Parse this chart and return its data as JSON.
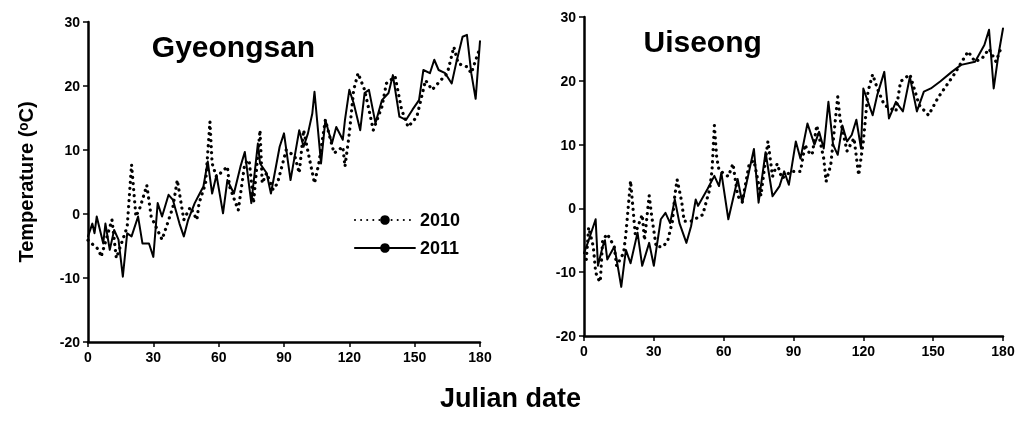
{
  "chart_data": [
    {
      "type": "line",
      "title": "Gyeongsan",
      "xlabel": "Julian date",
      "ylabel": "Temperature (ᵒC)",
      "xlim": [
        0,
        180
      ],
      "xticks": [
        0,
        30,
        60,
        90,
        120,
        150,
        180
      ],
      "ylim": [
        -20,
        30
      ],
      "yticks": [
        -20,
        -10,
        0,
        10,
        20,
        30
      ],
      "legend": "bottom right",
      "series": [
        {
          "name": "2010",
          "color": "#000000",
          "line_style": "dotted",
          "x": [
            0,
            5,
            6,
            11,
            13,
            18,
            20,
            22,
            24,
            27,
            29,
            34,
            36,
            39,
            41,
            44,
            47,
            50,
            51,
            54,
            56,
            57,
            59,
            64,
            65,
            69,
            72,
            74,
            76,
            79,
            80,
            82,
            85,
            87,
            91,
            95,
            97,
            99,
            104,
            106,
            109,
            111,
            113,
            117,
            118,
            120,
            122,
            124,
            127,
            129,
            131,
            135,
            137,
            141,
            144,
            147,
            151,
            155,
            158,
            162,
            165,
            168,
            170,
            174,
            176,
            178,
            180
          ],
          "values": [
            -4.1,
            -5.6,
            -6.7,
            -0.9,
            -6.9,
            -2,
            7.7,
            -0.4,
            1.1,
            4.5,
            -0.4,
            -4,
            -2,
            1.1,
            5.3,
            -0.9,
            1.1,
            -0.9,
            1.7,
            4.8,
            14.4,
            7.9,
            5.8,
            7.4,
            4.3,
            0.6,
            7.9,
            8.4,
            1.7,
            13.1,
            4.8,
            6.4,
            3.8,
            4.8,
            10,
            9,
            6.4,
            13.1,
            4.8,
            7.9,
            14.7,
            12.1,
            9.5,
            10.5,
            7.4,
            12.6,
            19.4,
            22,
            19.4,
            16.3,
            13.1,
            16.8,
            20.4,
            21.5,
            16.3,
            13.6,
            15.2,
            20.9,
            19.4,
            20.9,
            22,
            26.1,
            23.5,
            23,
            22,
            24,
            26
          ]
        },
        {
          "name": "2011",
          "color": "#000000",
          "line_style": "solid",
          "x": [
            0,
            2,
            3,
            4,
            7,
            8,
            10,
            12,
            14,
            16,
            18,
            20,
            23,
            25,
            28,
            30,
            32,
            34,
            37,
            39,
            42,
            44,
            46,
            49,
            51,
            53,
            55,
            57,
            59,
            62,
            64,
            67,
            70,
            72,
            75,
            78,
            79,
            82,
            84,
            88,
            90,
            93,
            97,
            99,
            101,
            103,
            104,
            107,
            109,
            112,
            114,
            117,
            118,
            120,
            122,
            125,
            127,
            129,
            132,
            135,
            138,
            140,
            143,
            146,
            149,
            152,
            154,
            157,
            159,
            161,
            164,
            167,
            169,
            172,
            174,
            176,
            178,
            180
          ],
          "values": [
            -3.5,
            -1.5,
            -3,
            -0.4,
            -4.6,
            -1.5,
            -5.6,
            -2.5,
            -4,
            -9.8,
            -3,
            -3.5,
            -0.4,
            -4.6,
            -4.6,
            -6.7,
            1.7,
            -0.4,
            3,
            2.2,
            -1.5,
            -3.5,
            -0.9,
            1.7,
            3,
            4.3,
            8.2,
            3.2,
            6.1,
            0.1,
            5.3,
            3.2,
            7.4,
            9.7,
            1.7,
            11,
            7.9,
            6.4,
            3.2,
            10.5,
            12.6,
            5.3,
            13.1,
            10.5,
            12.6,
            15.7,
            19.1,
            7.9,
            14.7,
            11,
            13.6,
            11.6,
            14.7,
            19.4,
            17.3,
            13.1,
            18.9,
            19.4,
            14.2,
            17.8,
            18.9,
            21.7,
            15.2,
            14.7,
            16.3,
            17.8,
            22.5,
            22,
            24.1,
            22.5,
            22,
            20.4,
            23.5,
            27.7,
            28,
            22,
            18,
            27
          ]
        }
      ]
    },
    {
      "type": "line",
      "title": "Uiseong",
      "xlim": [
        0,
        180
      ],
      "xticks": [
        0,
        30,
        60,
        90,
        120,
        150,
        180
      ],
      "ylim": [
        -20,
        30
      ],
      "yticks": [
        -20,
        -10,
        0,
        10,
        20,
        30
      ],
      "series": [
        {
          "color": "#000000",
          "line_style": "dotted",
          "x": [
            1,
            2,
            4,
            5,
            6,
            7,
            8,
            10,
            13,
            14,
            17,
            18,
            20,
            22,
            25,
            26,
            28,
            29,
            31,
            34,
            36,
            38,
            39,
            40,
            42,
            43,
            46,
            51,
            54,
            55,
            56,
            57,
            58,
            62,
            64,
            66,
            68,
            71,
            73,
            76,
            79,
            81,
            83,
            85,
            89,
            93,
            95,
            96,
            98,
            100,
            103,
            104,
            106,
            109,
            110,
            113,
            116,
            118,
            120,
            122,
            124,
            126,
            129,
            134,
            136,
            140,
            144,
            148,
            152,
            159,
            165,
            168,
            171,
            174,
            177,
            179
          ],
          "values": [
            -8,
            -3,
            -6,
            -10,
            -11,
            -11.5,
            -5,
            -4,
            -6,
            -9,
            -7,
            -4,
            4.3,
            -4,
            -1,
            -5,
            2,
            -1,
            -6,
            -6,
            -5,
            -2,
            2,
            4.5,
            1,
            -2,
            -2,
            -1,
            3,
            6,
            13,
            8,
            6,
            5,
            7,
            2,
            1,
            7,
            7.5,
            2,
            10.5,
            5,
            7,
            4.7,
            5.8,
            5.8,
            10,
            9,
            8.4,
            13,
            7.8,
            4.2,
            6.8,
            17.5,
            14,
            9,
            11,
            5.2,
            10.5,
            18.3,
            21,
            18.8,
            16.2,
            15.2,
            19.9,
            21,
            16.2,
            14.6,
            17.3,
            21,
            24.6,
            23,
            23.5,
            25,
            23,
            25
          ]
        },
        {
          "color": "#000000",
          "line_style": "solid",
          "x": [
            0,
            2,
            5,
            6,
            8,
            9,
            10,
            13,
            14,
            16,
            18,
            20,
            23,
            25,
            28,
            30,
            33,
            35,
            37,
            39,
            41,
            44,
            46,
            48,
            49,
            53,
            56,
            58,
            59,
            62,
            66,
            68,
            73,
            75,
            78,
            81,
            84,
            86,
            88,
            91,
            93,
            96,
            99,
            101,
            103,
            105,
            107,
            109,
            111,
            113,
            115,
            117,
            119,
            120,
            122,
            124,
            126,
            129,
            131,
            134,
            137,
            140,
            143,
            146,
            149,
            153,
            158,
            162,
            168,
            172,
            174,
            176,
            178,
            180
          ],
          "values": [
            -7,
            -5,
            -1.7,
            -9,
            -6,
            -5,
            -8,
            -6,
            -8,
            -12.3,
            -6.5,
            -8.6,
            -3.8,
            -9,
            -5.4,
            -9,
            -1.7,
            -0.7,
            -2.3,
            1.4,
            -2.3,
            -5.4,
            -2.8,
            1.4,
            0.4,
            3,
            5.1,
            3.5,
            5.6,
            -1.7,
            4.6,
            0.9,
            9.3,
            0.9,
            8.8,
            1.9,
            3.5,
            5.8,
            3.7,
            10.5,
            7.8,
            13.3,
            10,
            12,
            9.4,
            16.7,
            10,
            8.4,
            13,
            10.5,
            11.5,
            13.9,
            9.4,
            18.8,
            16.7,
            14.6,
            17.8,
            21.4,
            14.1,
            16.7,
            15.2,
            20.6,
            15.2,
            18.3,
            18.8,
            19.9,
            21.4,
            22.5,
            23,
            25.6,
            28,
            18.8,
            24,
            28.2
          ]
        }
      ]
    }
  ]
}
